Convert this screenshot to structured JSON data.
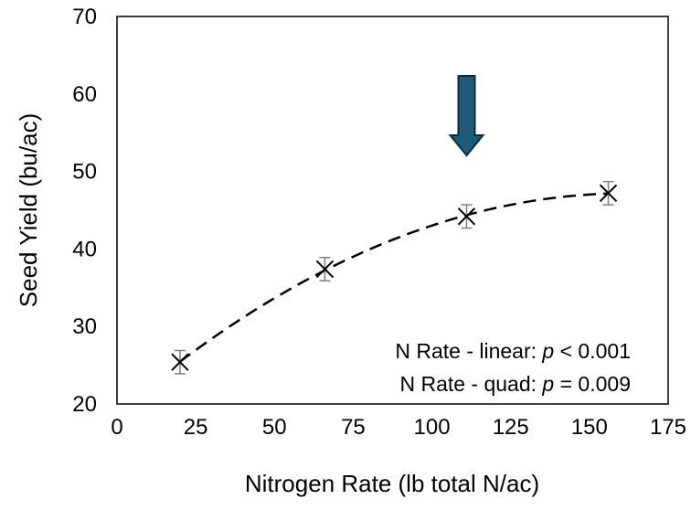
{
  "chart_data": {
    "type": "scatter",
    "title": "",
    "xlabel": "Nitrogen Rate (lb total N/ac)",
    "ylabel": "Seed Yield (bu/ac)",
    "xlim": [
      0,
      175
    ],
    "ylim": [
      20,
      70
    ],
    "xticks": [
      0,
      25,
      50,
      75,
      100,
      125,
      150,
      175
    ],
    "yticks": [
      20,
      30,
      40,
      50,
      60,
      70
    ],
    "grid": false,
    "series": [
      {
        "marker": "x",
        "x": [
          20,
          66,
          111,
          156
        ],
        "y": [
          25.4,
          37.4,
          44.2,
          47.2
        ],
        "error": [
          1.5,
          1.5,
          1.5,
          1.5
        ]
      }
    ],
    "trendline": {
      "style": "dashed",
      "fit": "quadratic",
      "x_range": [
        20,
        156
      ]
    },
    "annotation_arrow_x": 111,
    "annotations": [
      {
        "label": "N Rate - linear: ",
        "stat": "p",
        "rest": " < 0.001"
      },
      {
        "label": "N Rate - quad: ",
        "stat": "p",
        "rest": " = 0.009"
      }
    ],
    "colors": {
      "arrow_fill": "#1f5a7a",
      "arrow_stroke": "#0d2a3d",
      "errorbar": "#7f7f7f",
      "marker": "#000000"
    }
  }
}
